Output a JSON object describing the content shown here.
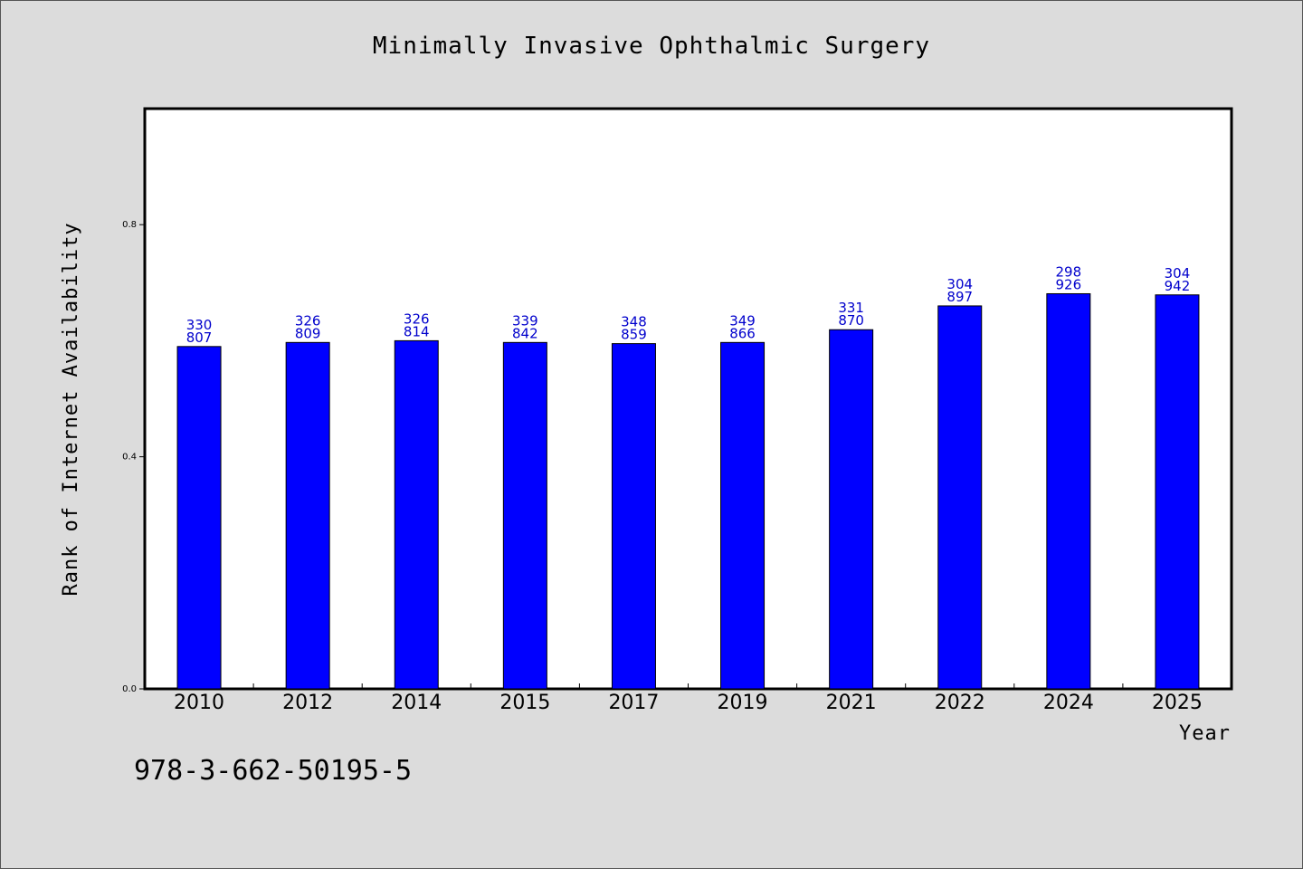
{
  "chart_data": {
    "type": "bar",
    "title": "Minimally Invasive Ophthalmic Surgery",
    "xlabel": "Year",
    "ylabel": "Rank of Internet Availability",
    "categories": [
      "2010",
      "2012",
      "2014",
      "2015",
      "2017",
      "2019",
      "2021",
      "2022",
      "2024",
      "2025"
    ],
    "values": [
      0.59,
      0.597,
      0.6,
      0.597,
      0.595,
      0.597,
      0.619,
      0.66,
      0.681,
      0.679
    ],
    "data_labels": [
      [
        "330",
        "807"
      ],
      [
        "326",
        "809"
      ],
      [
        "326",
        "814"
      ],
      [
        "339",
        "842"
      ],
      [
        "348",
        "859"
      ],
      [
        "349",
        "866"
      ],
      [
        "331",
        "870"
      ],
      [
        "304",
        "897"
      ],
      [
        "298",
        "926"
      ],
      [
        "304",
        "942"
      ]
    ],
    "ylim": [
      0,
      1.0
    ],
    "yticks": [
      "0.0",
      "0.4",
      "0.8"
    ],
    "ytick_values": [
      0,
      0.4,
      0.8
    ],
    "grid": false,
    "colors": {
      "bar": "#0000ff",
      "label": "#0000cc",
      "background": "#dcdcdc",
      "plot_background": "#ffffff"
    }
  },
  "footer": {
    "isbn": "978-3-662-50195-5"
  }
}
